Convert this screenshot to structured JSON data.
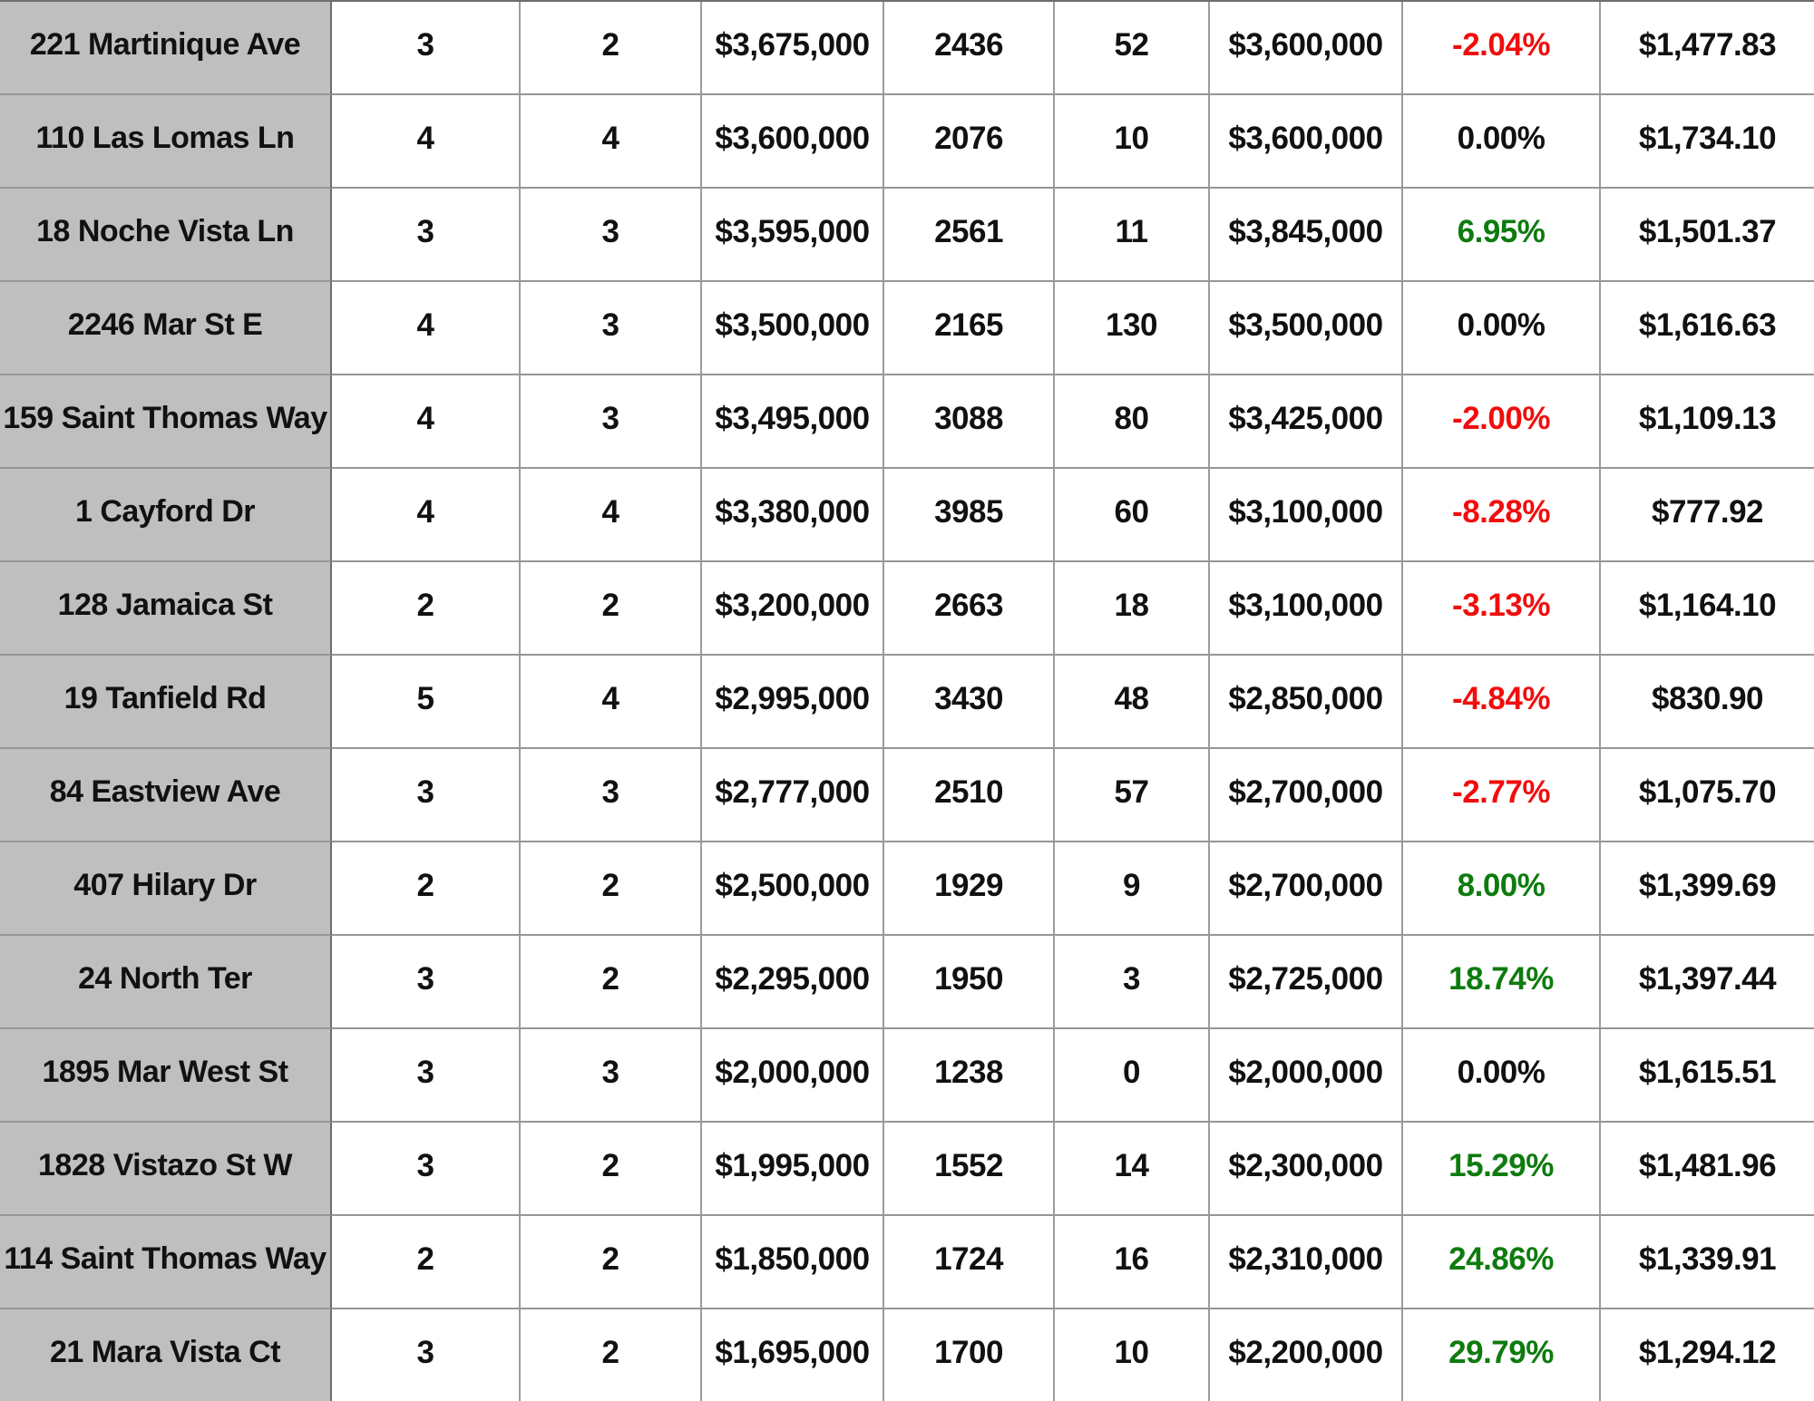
{
  "colors": {
    "address_bg": "#bfbfbf",
    "border_vertical": "#9c9c9c",
    "border_horizontal": "#969696",
    "border_dark": "#6e6e6e",
    "text": "#111111",
    "negative": "#f10d0d",
    "positive": "#0e7b0e"
  },
  "table": {
    "columns": [
      {
        "key": "address"
      },
      {
        "key": "beds"
      },
      {
        "key": "baths"
      },
      {
        "key": "list_price"
      },
      {
        "key": "sqft"
      },
      {
        "key": "days_on_market"
      },
      {
        "key": "sold_price"
      },
      {
        "key": "price_change_pct"
      },
      {
        "key": "price_per_sqft"
      }
    ],
    "rows": [
      {
        "address": "221 Martinique Ave",
        "beds": "3",
        "baths": "2",
        "list_price": "$3,675,000",
        "sqft": "2436",
        "days_on_market": "52",
        "sold_price": "$3,600,000",
        "price_change_pct": "-2.04%",
        "price_per_sqft": "$1,477.83"
      },
      {
        "address": "110 Las Lomas Ln",
        "beds": "4",
        "baths": "4",
        "list_price": "$3,600,000",
        "sqft": "2076",
        "days_on_market": "10",
        "sold_price": "$3,600,000",
        "price_change_pct": "0.00%",
        "price_per_sqft": "$1,734.10"
      },
      {
        "address": "18 Noche Vista Ln",
        "beds": "3",
        "baths": "3",
        "list_price": "$3,595,000",
        "sqft": "2561",
        "days_on_market": "11",
        "sold_price": "$3,845,000",
        "price_change_pct": "6.95%",
        "price_per_sqft": "$1,501.37"
      },
      {
        "address": "2246 Mar St E",
        "beds": "4",
        "baths": "3",
        "list_price": "$3,500,000",
        "sqft": "2165",
        "days_on_market": "130",
        "sold_price": "$3,500,000",
        "price_change_pct": "0.00%",
        "price_per_sqft": "$1,616.63"
      },
      {
        "address": "159 Saint Thomas Way",
        "beds": "4",
        "baths": "3",
        "list_price": "$3,495,000",
        "sqft": "3088",
        "days_on_market": "80",
        "sold_price": "$3,425,000",
        "price_change_pct": "-2.00%",
        "price_per_sqft": "$1,109.13"
      },
      {
        "address": "1 Cayford Dr",
        "beds": "4",
        "baths": "4",
        "list_price": "$3,380,000",
        "sqft": "3985",
        "days_on_market": "60",
        "sold_price": "$3,100,000",
        "price_change_pct": "-8.28%",
        "price_per_sqft": "$777.92"
      },
      {
        "address": "128 Jamaica St",
        "beds": "2",
        "baths": "2",
        "list_price": "$3,200,000",
        "sqft": "2663",
        "days_on_market": "18",
        "sold_price": "$3,100,000",
        "price_change_pct": "-3.13%",
        "price_per_sqft": "$1,164.10"
      },
      {
        "address": "19 Tanfield Rd",
        "beds": "5",
        "baths": "4",
        "list_price": "$2,995,000",
        "sqft": "3430",
        "days_on_market": "48",
        "sold_price": "$2,850,000",
        "price_change_pct": "-4.84%",
        "price_per_sqft": "$830.90"
      },
      {
        "address": "84 Eastview Ave",
        "beds": "3",
        "baths": "3",
        "list_price": "$2,777,000",
        "sqft": "2510",
        "days_on_market": "57",
        "sold_price": "$2,700,000",
        "price_change_pct": "-2.77%",
        "price_per_sqft": "$1,075.70"
      },
      {
        "address": "407 Hilary Dr",
        "beds": "2",
        "baths": "2",
        "list_price": "$2,500,000",
        "sqft": "1929",
        "days_on_market": "9",
        "sold_price": "$2,700,000",
        "price_change_pct": "8.00%",
        "price_per_sqft": "$1,399.69"
      },
      {
        "address": "24 North Ter",
        "beds": "3",
        "baths": "2",
        "list_price": "$2,295,000",
        "sqft": "1950",
        "days_on_market": "3",
        "sold_price": "$2,725,000",
        "price_change_pct": "18.74%",
        "price_per_sqft": "$1,397.44"
      },
      {
        "address": "1895 Mar West St",
        "beds": "3",
        "baths": "3",
        "list_price": "$2,000,000",
        "sqft": "1238",
        "days_on_market": "0",
        "sold_price": "$2,000,000",
        "price_change_pct": "0.00%",
        "price_per_sqft": "$1,615.51"
      },
      {
        "address": "1828 Vistazo St W",
        "beds": "3",
        "baths": "2",
        "list_price": "$1,995,000",
        "sqft": "1552",
        "days_on_market": "14",
        "sold_price": "$2,300,000",
        "price_change_pct": "15.29%",
        "price_per_sqft": "$1,481.96"
      },
      {
        "address": "114 Saint Thomas Way",
        "beds": "2",
        "baths": "2",
        "list_price": "$1,850,000",
        "sqft": "1724",
        "days_on_market": "16",
        "sold_price": "$2,310,000",
        "price_change_pct": "24.86%",
        "price_per_sqft": "$1,339.91"
      },
      {
        "address": "21 Mara Vista Ct",
        "beds": "3",
        "baths": "2",
        "list_price": "$1,695,000",
        "sqft": "1700",
        "days_on_market": "10",
        "sold_price": "$2,200,000",
        "price_change_pct": "29.79%",
        "price_per_sqft": "$1,294.12"
      }
    ]
  }
}
